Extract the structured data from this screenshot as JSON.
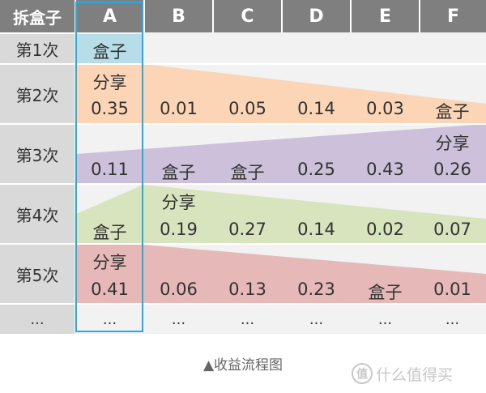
{
  "header": {
    "corner": "拆盒子",
    "columns": [
      "A",
      "B",
      "C",
      "D",
      "E",
      "F"
    ]
  },
  "rows": [
    {
      "label": "第1次",
      "cells": [
        [
          "盒子"
        ],
        [],
        [],
        [],
        [],
        []
      ]
    },
    {
      "label": "第2次",
      "cells": [
        [
          "分享",
          "0.35"
        ],
        [
          "0.01"
        ],
        [
          "0.05"
        ],
        [
          "0.14"
        ],
        [
          "0.03"
        ],
        [
          "盒子"
        ]
      ]
    },
    {
      "label": "第3次",
      "cells": [
        [
          "0.11"
        ],
        [
          "盒子"
        ],
        [
          "盒子"
        ],
        [
          "0.25"
        ],
        [
          "0.43"
        ],
        [
          "分享",
          "0.26"
        ]
      ]
    },
    {
      "label": "第4次",
      "cells": [
        [
          "盒子"
        ],
        [
          "分享",
          "0.19"
        ],
        [
          "0.27"
        ],
        [
          "0.14"
        ],
        [
          "0.02"
        ],
        [
          "0.07"
        ]
      ]
    },
    {
      "label": "第5次",
      "cells": [
        [
          "分享",
          "0.41"
        ],
        [
          "0.06"
        ],
        [
          "0.13"
        ],
        [
          "0.23"
        ],
        [
          "盒子"
        ],
        [
          "0.01"
        ]
      ]
    },
    {
      "label": "...",
      "cells": [
        [
          "..."
        ],
        [
          "..."
        ],
        [
          "..."
        ],
        [
          "..."
        ],
        [
          "..."
        ],
        [
          "..."
        ]
      ]
    }
  ],
  "caption": "▲收益流程图",
  "watermark": {
    "logo": "值",
    "text": "什么值得买"
  },
  "colors": {
    "header": "#7f7f7f",
    "row_label": "#d9d9d9",
    "highlight_border": "#27a9e1",
    "box_cell": "#b7dde8",
    "band_row2": "#fbd5b5",
    "band_row3": "#ccc0da",
    "band_row4": "#d7e4bd",
    "band_row5": "#e6b9b8"
  }
}
